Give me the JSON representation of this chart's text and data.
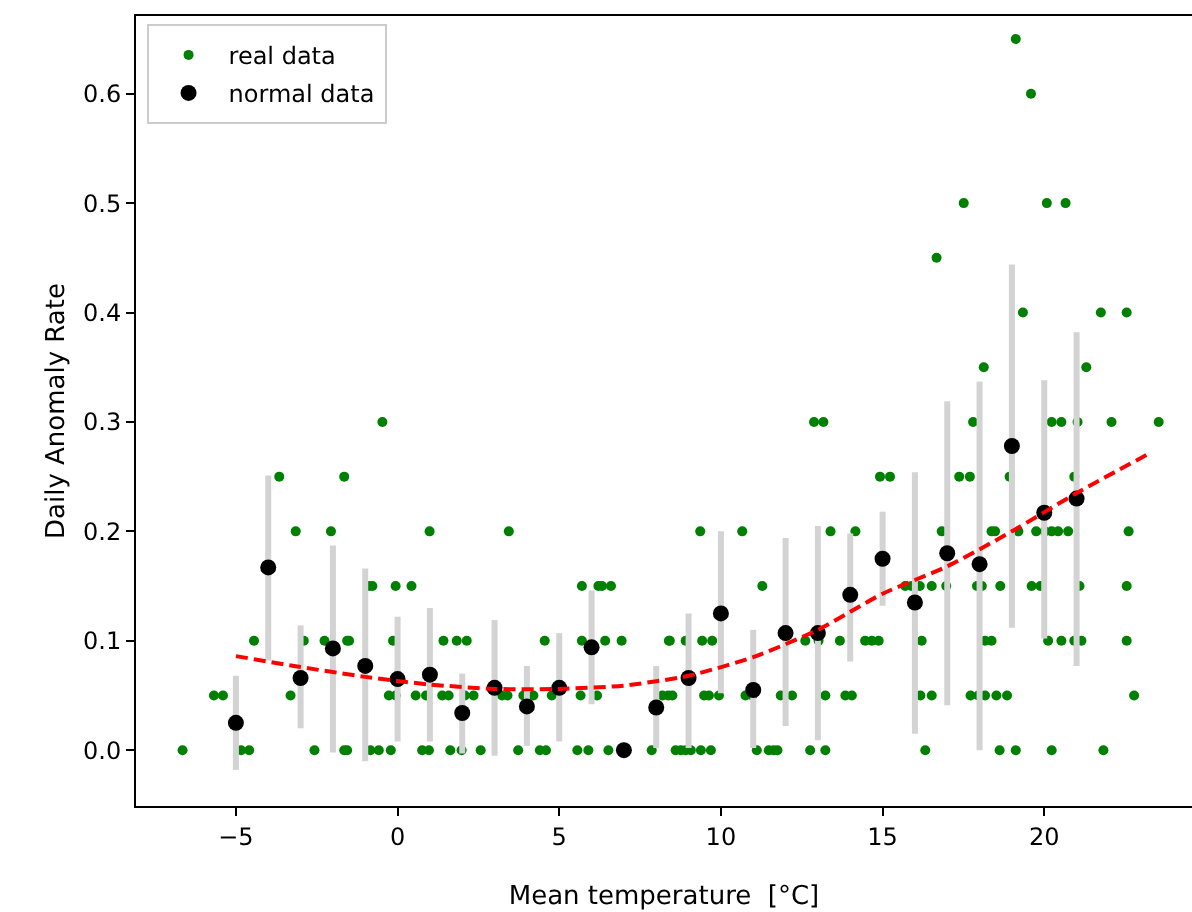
{
  "chart_data": {
    "type": "scatter",
    "xlabel": "Mean temperature  [°C]",
    "ylabel": "Daily Anomaly Rate",
    "xlim": [
      -8.09,
      24.57
    ],
    "xticks": [
      {
        "value": -5,
        "label": "−5"
      },
      0,
      5,
      10,
      15,
      20
    ],
    "ylim": [
      -0.051,
      0.671
    ],
    "yticks": [
      {
        "value": 0,
        "label": "0.0"
      },
      0.1,
      0.2,
      0.3,
      0.4,
      0.5,
      0.6
    ],
    "grid": false,
    "legend": "top left",
    "marker": "circle",
    "series": [
      {
        "name": "real data",
        "color": "#008000",
        "x": [
          -6.65,
          -5.68,
          -5.4,
          -4.84,
          -4.59,
          -4.44,
          -3.66,
          -3.31,
          -3.15,
          -2.9,
          -2.57,
          -2.26,
          -2.06,
          -1.65,
          -1.65,
          -1.56,
          -1.5,
          -1.56,
          -0.88,
          -0.78,
          -0.84,
          -0.58,
          -0.47,
          -0.27,
          -0.21,
          -0.14,
          -0.06,
          -0.06,
          0.43,
          0.56,
          0.76,
          0.88,
          0.97,
          0.99,
          1.38,
          1.42,
          1.58,
          1.63,
          1.83,
          1.98,
          2.08,
          2.14,
          2.35,
          2.57,
          3.23,
          3.4,
          3.44,
          3.73,
          3.89,
          4.2,
          4.4,
          4.55,
          4.59,
          4.77,
          5.56,
          5.66,
          5.7,
          5.7,
          5.9,
          6.17,
          6.21,
          6.32,
          6.42,
          6.52,
          6.6,
          6.93,
          7.86,
          8.37,
          8.42,
          8.6,
          8.76,
          8.91,
          9.07,
          9.38,
          9.69,
          11.11,
          11.48,
          11.63,
          11.75,
          12.76,
          13.23,
          16.32,
          18.62,
          19.12,
          20.23,
          21.83,
          8.19,
          8.5,
          9.48,
          9.63,
          9.94,
          10.76,
          10.97,
          11.85,
          12.2,
          13.23,
          13.85,
          14.05,
          16.17,
          16.52,
          17.72,
          17.96,
          18.17,
          18.52,
          18.85,
          22.78,
          8.39,
          8.91,
          9.42,
          9.73,
          12.61,
          13.02,
          13.68,
          14.46,
          14.67,
          14.88,
          16.21,
          18.17,
          18.37,
          20.12,
          20.53,
          20.93,
          21.15,
          22.55,
          11.28,
          15.7,
          15.9,
          16.15,
          16.52,
          16.97,
          17.92,
          18.07,
          18.64,
          19.61,
          19.88,
          21.09,
          22.55,
          9.36,
          10.66,
          13.39,
          14.16,
          16.83,
          18.37,
          18.48,
          19.2,
          19.75,
          20.02,
          20.23,
          20.43,
          20.74,
          22.61,
          14.92,
          15.23,
          17.37,
          17.7,
          18.93,
          20.93,
          12.88,
          13.17,
          17.8,
          20.23,
          20.53,
          21.03,
          22.08,
          23.54,
          18.13,
          21.3,
          19.34,
          21.75,
          22.55,
          16.67,
          17.51,
          20.08,
          20.66,
          19.59,
          19.12
        ],
        "values": [
          0,
          0.05,
          0.05,
          0,
          0,
          0.1,
          0.25,
          0.05,
          0.2,
          0.1,
          0,
          0.1,
          0.2,
          0.25,
          0,
          0.1,
          0.1,
          0,
          0.15,
          0.15,
          0,
          0,
          0.3,
          0.05,
          0,
          0.1,
          0.15,
          0.05,
          0.15,
          0.05,
          0,
          0.05,
          0,
          0.2,
          0.05,
          0.1,
          0.05,
          0,
          0.1,
          0,
          0.05,
          0.1,
          0.05,
          0,
          0.05,
          0.05,
          0.2,
          0,
          0.05,
          0.05,
          0,
          0.1,
          0,
          0.05,
          0,
          0.05,
          0.15,
          0.1,
          0,
          0.05,
          0.15,
          0.15,
          0.1,
          0,
          0.15,
          0.1,
          0,
          0.05,
          0.1,
          0,
          0,
          0,
          0,
          0,
          0,
          0,
          0,
          0,
          0,
          0,
          0,
          0,
          0,
          0,
          0,
          0,
          0.05,
          0.05,
          0.05,
          0.05,
          0.05,
          0.05,
          0.05,
          0.05,
          0.05,
          0.05,
          0.05,
          0.05,
          0.05,
          0.05,
          0.05,
          0.05,
          0.05,
          0.05,
          0.05,
          0.05,
          0.1,
          0.1,
          0.1,
          0.1,
          0.1,
          0.1,
          0.1,
          0.1,
          0.1,
          0.1,
          0.1,
          0.1,
          0.1,
          0.1,
          0.1,
          0.1,
          0.1,
          0.1,
          0.15,
          0.15,
          0.15,
          0.15,
          0.15,
          0.15,
          0.15,
          0.15,
          0.15,
          0.15,
          0.15,
          0.15,
          0.15,
          0.2,
          0.2,
          0.2,
          0.2,
          0.2,
          0.2,
          0.2,
          0.2,
          0.2,
          0.2,
          0.2,
          0.2,
          0.2,
          0.2,
          0.25,
          0.25,
          0.25,
          0.25,
          0.25,
          0.25,
          0.3,
          0.3,
          0.3,
          0.3,
          0.3,
          0.3,
          0.3,
          0.3,
          0.35,
          0.35,
          0.4,
          0.4,
          0.4,
          0.45,
          0.5,
          0.5,
          0.5,
          0.6,
          0.65
        ]
      },
      {
        "name": "normal data",
        "color": "#000000",
        "x": [
          -5,
          -4,
          -3,
          -2,
          -1,
          0,
          1,
          2,
          3,
          4,
          5,
          6,
          7,
          8,
          9,
          10,
          11,
          12,
          13,
          14,
          15,
          16,
          17,
          18,
          19,
          20,
          21
        ],
        "values": [
          0.025,
          0.167,
          0.066,
          0.093,
          0.077,
          0.065,
          0.069,
          0.034,
          0.057,
          0.04,
          0.057,
          0.094,
          0.0,
          0.039,
          0.066,
          0.125,
          0.055,
          0.107,
          0.107,
          0.142,
          0.175,
          0.135,
          0.18,
          0.17,
          0.278,
          0.217,
          0.23
        ],
        "errors": [
          [
            -0.018,
            0.068
          ],
          [
            0.082,
            0.251
          ],
          [
            0.02,
            0.114
          ],
          [
            -0.002,
            0.187
          ],
          [
            -0.01,
            0.166
          ],
          [
            0.008,
            0.122
          ],
          [
            0.008,
            0.13
          ],
          [
            -0.003,
            0.07
          ],
          [
            -0.005,
            0.119
          ],
          [
            0.004,
            0.077
          ],
          [
            0.008,
            0.107
          ],
          [
            0.042,
            0.146
          ],
          null,
          [
            0.002,
            0.077
          ],
          [
            0.002,
            0.125
          ],
          [
            0.052,
            0.2
          ],
          [
            0.002,
            0.11
          ],
          [
            0.022,
            0.194
          ],
          [
            0.009,
            0.205
          ],
          [
            0.081,
            0.198
          ],
          [
            0.132,
            0.218
          ],
          [
            0.015,
            0.254
          ],
          [
            0.041,
            0.319
          ],
          [
            0,
            0.337
          ],
          [
            0.112,
            0.444
          ],
          [
            0.102,
            0.338
          ],
          [
            0.077,
            0.382
          ]
        ]
      },
      {
        "type": "line",
        "color": "#ff0000",
        "line_style": "dashed",
        "marker": "none",
        "x": [
          -5,
          -3,
          -1,
          1,
          3,
          5,
          7,
          9,
          11,
          13,
          15,
          17,
          19,
          21,
          23.3
        ],
        "values": [
          0.086,
          0.076,
          0.067,
          0.06,
          0.056,
          0.056,
          0.059,
          0.068,
          0.085,
          0.11,
          0.143,
          0.168,
          0.2,
          0.235,
          0.272
        ]
      }
    ]
  }
}
